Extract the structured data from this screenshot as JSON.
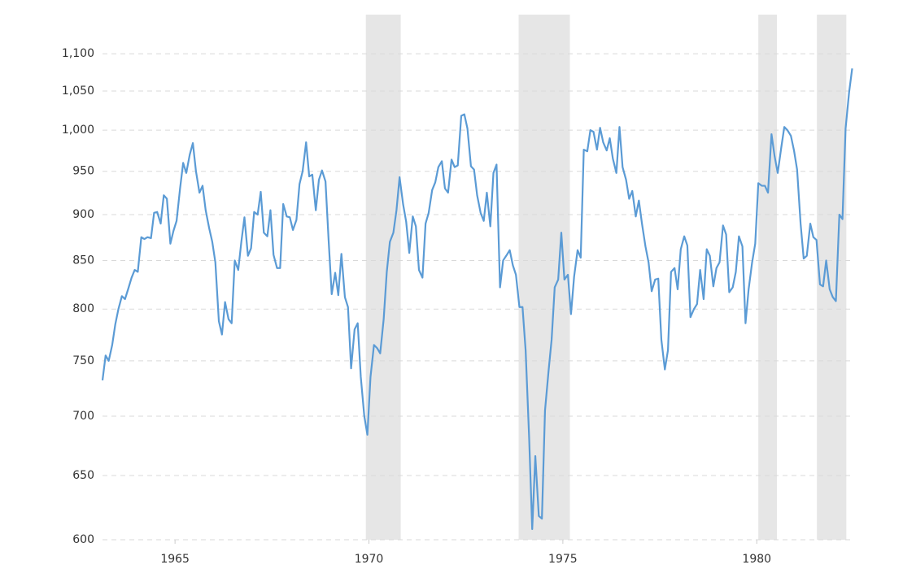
{
  "chart_data": {
    "type": "line",
    "ylog": true,
    "grid": true,
    "color": "#5b9bd5",
    "band_color": "#e6e6e6",
    "xlim": [
      1963.13,
      1982.47
    ],
    "xticks": [
      1965,
      1970,
      1975,
      1980
    ],
    "ylim": [
      600,
      1155
    ],
    "yticks": [
      600,
      650,
      700,
      750,
      800,
      850,
      900,
      950,
      {
        "value": 1000,
        "label": "1,000"
      },
      {
        "value": 1050,
        "label": "1,050"
      },
      {
        "value": 1100,
        "label": "1,100"
      }
    ],
    "recessions": [
      [
        1969.92,
        1970.82
      ],
      [
        1973.86,
        1975.18
      ],
      [
        1980.04,
        1980.52
      ],
      [
        1981.55,
        1982.31
      ]
    ],
    "x": [
      1963.13,
      1963.21,
      1963.29,
      1963.38,
      1963.46,
      1963.54,
      1963.63,
      1963.71,
      1963.79,
      1963.88,
      1963.96,
      1964.04,
      1964.13,
      1964.21,
      1964.29,
      1964.38,
      1964.46,
      1964.54,
      1964.63,
      1964.71,
      1964.79,
      1964.88,
      1964.96,
      1965.04,
      1965.13,
      1965.21,
      1965.29,
      1965.38,
      1965.46,
      1965.54,
      1965.63,
      1965.71,
      1965.79,
      1965.88,
      1965.96,
      1966.04,
      1966.13,
      1966.21,
      1966.29,
      1966.38,
      1966.46,
      1966.54,
      1966.63,
      1966.71,
      1966.79,
      1966.88,
      1966.96,
      1967.04,
      1967.13,
      1967.21,
      1967.29,
      1967.38,
      1967.46,
      1967.54,
      1967.63,
      1967.71,
      1967.79,
      1967.88,
      1967.96,
      1968.04,
      1968.13,
      1968.21,
      1968.29,
      1968.38,
      1968.46,
      1968.54,
      1968.63,
      1968.71,
      1968.79,
      1968.88,
      1968.96,
      1969.04,
      1969.13,
      1969.21,
      1969.29,
      1969.38,
      1969.46,
      1969.54,
      1969.63,
      1969.71,
      1969.79,
      1969.88,
      1969.96,
      1970.04,
      1970.13,
      1970.21,
      1970.29,
      1970.38,
      1970.46,
      1970.54,
      1970.63,
      1970.71,
      1970.79,
      1970.88,
      1970.96,
      1971.04,
      1971.13,
      1971.21,
      1971.29,
      1971.38,
      1971.46,
      1971.54,
      1971.63,
      1971.71,
      1971.79,
      1971.88,
      1971.96,
      1972.04,
      1972.13,
      1972.21,
      1972.29,
      1972.38,
      1972.46,
      1972.54,
      1972.63,
      1972.71,
      1972.79,
      1972.88,
      1972.96,
      1973.04,
      1973.13,
      1973.21,
      1973.29,
      1973.38,
      1973.46,
      1973.54,
      1973.63,
      1973.71,
      1973.79,
      1973.88,
      1973.96,
      1974.04,
      1974.13,
      1974.21,
      1974.29,
      1974.38,
      1974.46,
      1974.54,
      1974.63,
      1974.71,
      1974.79,
      1974.88,
      1974.96,
      1975.04,
      1975.13,
      1975.21,
      1975.29,
      1975.38,
      1975.46,
      1975.54,
      1975.63,
      1975.71,
      1975.79,
      1975.88,
      1975.96,
      1976.04,
      1976.13,
      1976.21,
      1976.29,
      1976.38,
      1976.46,
      1976.54,
      1976.63,
      1976.71,
      1976.79,
      1976.88,
      1976.96,
      1977.04,
      1977.13,
      1977.21,
      1977.29,
      1977.38,
      1977.46,
      1977.54,
      1977.63,
      1977.71,
      1977.79,
      1977.88,
      1977.96,
      1978.04,
      1978.13,
      1978.21,
      1978.29,
      1978.38,
      1978.46,
      1978.54,
      1978.63,
      1978.71,
      1978.79,
      1978.88,
      1978.96,
      1979.04,
      1979.13,
      1979.21,
      1979.29,
      1979.38,
      1979.46,
      1979.54,
      1979.63,
      1979.71,
      1979.79,
      1979.88,
      1979.96,
      1980.04,
      1980.13,
      1980.21,
      1980.29,
      1980.38,
      1980.46,
      1980.54,
      1980.63,
      1980.71,
      1980.79,
      1980.88,
      1980.96,
      1981.04,
      1981.13,
      1981.21,
      1981.29,
      1981.38,
      1981.46,
      1981.54,
      1981.63,
      1981.71,
      1981.79,
      1981.88,
      1981.96,
      1982.04,
      1982.13,
      1982.21,
      1982.29,
      1982.38,
      1982.46
    ],
    "values": [
      732,
      755,
      750,
      765,
      785,
      800,
      813,
      810,
      820,
      832,
      840,
      838,
      875,
      873,
      875,
      874,
      902,
      903,
      890,
      922,
      918,
      868,
      882,
      893,
      930,
      960,
      948,
      970,
      984,
      950,
      925,
      933,
      905,
      885,
      870,
      848,
      788,
      775,
      807,
      790,
      786,
      850,
      840,
      870,
      897,
      855,
      863,
      903,
      900,
      926,
      880,
      876,
      905,
      856,
      842,
      842,
      912,
      898,
      897,
      883,
      894,
      935,
      950,
      985,
      944,
      946,
      905,
      940,
      951,
      938,
      872,
      815,
      837,
      814,
      857,
      812,
      802,
      743,
      780,
      786,
      735,
      700,
      684,
      735,
      765,
      762,
      757,
      790,
      838,
      870,
      880,
      905,
      943,
      912,
      892,
      858,
      898,
      887,
      840,
      832,
      890,
      902,
      928,
      937,
      955,
      962,
      930,
      925,
      964,
      955,
      957,
      1018,
      1020,
      1002,
      956,
      952,
      922,
      902,
      893,
      925,
      887,
      948,
      958,
      822,
      850,
      855,
      861,
      845,
      835,
      802,
      802,
      760,
      682,
      608,
      666,
      618,
      616,
      705,
      740,
      770,
      822,
      830,
      880,
      830,
      835,
      795,
      833,
      861,
      853,
      976,
      974,
      1000,
      998,
      976,
      1003,
      985,
      975,
      990,
      965,
      948,
      1004,
      955,
      940,
      918,
      927,
      898,
      916,
      890,
      865,
      848,
      818,
      830,
      831,
      770,
      742,
      760,
      838,
      842,
      820,
      862,
      876,
      866,
      792,
      800,
      805,
      840,
      810,
      862,
      855,
      823,
      842,
      848,
      888,
      878,
      817,
      822,
      838,
      876,
      865,
      786,
      820,
      848,
      868,
      936,
      933,
      933,
      925,
      995,
      968,
      948,
      978,
      1004,
      1000,
      993,
      975,
      952,
      890,
      852,
      855,
      890,
      875,
      872,
      825,
      823,
      850,
      820,
      812,
      808,
      900,
      895,
      1002,
      1048,
      1080
    ]
  }
}
